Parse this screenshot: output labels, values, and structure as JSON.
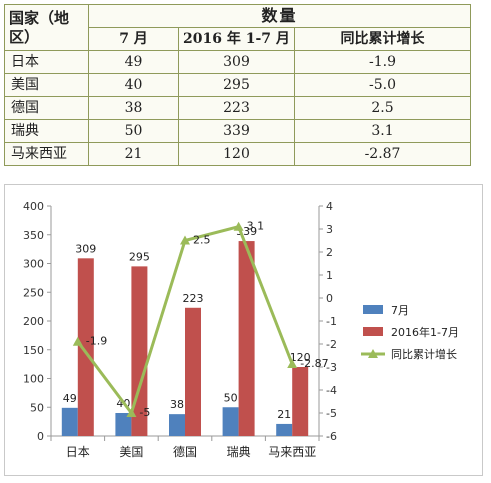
{
  "table": {
    "header_country": "国家（地区）",
    "header_quantity": "数量",
    "col_month": "7 月",
    "col_ytd": "2016 年 1-7 月",
    "col_growth": "同比累计增长",
    "rows": [
      {
        "country": "日本",
        "month": "49",
        "ytd": "309",
        "growth": "-1.9"
      },
      {
        "country": "美国",
        "month": "40",
        "ytd": "295",
        "growth": "-5.0"
      },
      {
        "country": "德国",
        "month": "38",
        "ytd": "223",
        "growth": "2.5"
      },
      {
        "country": "瑞典",
        "month": "50",
        "ytd": "339",
        "growth": "3.1"
      },
      {
        "country": "马来西亚",
        "month": "21",
        "ytd": "120",
        "growth": "-2.87"
      }
    ]
  },
  "chart_data": {
    "type": "bar",
    "categories": [
      "日本",
      "美国",
      "德国",
      "瑞典",
      "马来西亚"
    ],
    "series": [
      {
        "name": "7月",
        "kind": "bar",
        "axis": "left",
        "color": "#4f81bd",
        "values": [
          49,
          40,
          38,
          50,
          21
        ]
      },
      {
        "name": "2016年1-7月",
        "kind": "bar",
        "axis": "left",
        "color": "#c0504d",
        "values": [
          309,
          295,
          223,
          339,
          120
        ]
      },
      {
        "name": "同比累计增长",
        "kind": "line",
        "axis": "right",
        "color": "#9bbb59",
        "values": [
          -1.9,
          -5,
          2.5,
          3.1,
          -2.87
        ]
      }
    ],
    "bar_labels_shown": [
      [
        49,
        40,
        38,
        50,
        21
      ],
      [
        309,
        295,
        223,
        339,
        120
      ]
    ],
    "line_labels_shown": [
      "-1.9",
      "-5",
      "2.5",
      "3.1",
      "-2.87"
    ],
    "ylim_left": [
      0,
      400
    ],
    "ylim_right": [
      -6,
      4
    ],
    "yticks_left": [
      "400",
      "350",
      "300",
      "250",
      "200",
      "150",
      "100",
      "50",
      "0"
    ],
    "yticks_right": [
      "4",
      "3",
      "2",
      "1",
      "0",
      "-1",
      "-2",
      "-3",
      "-4",
      "-5",
      "-6"
    ],
    "legend_position": "right",
    "grid": false
  }
}
